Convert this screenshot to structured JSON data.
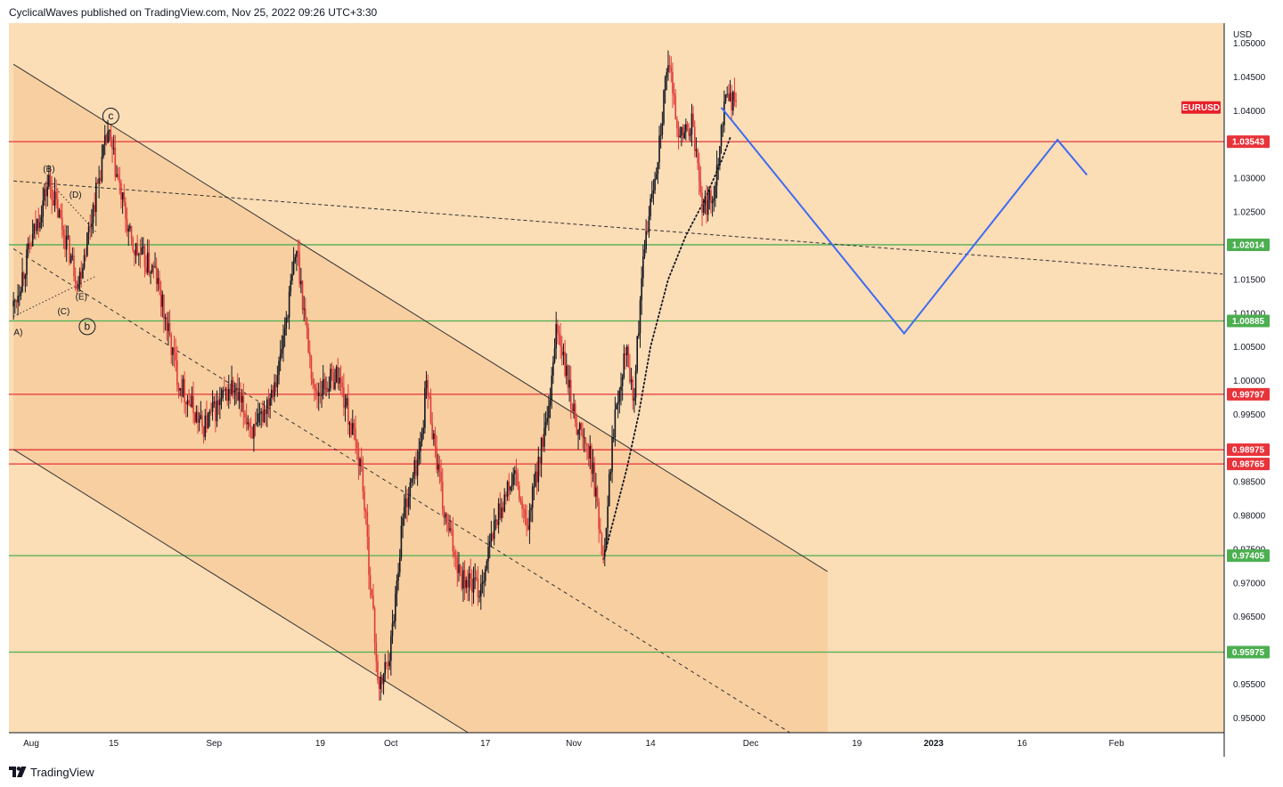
{
  "header": {
    "publisher_line": "CyclicalWaves published on TradingView.com, Nov 25, 2022 09:26 UTC+3:30"
  },
  "footer": {
    "brand": "TradingView"
  },
  "colors": {
    "background": "#FBDDB6",
    "channel_fill": "#F8CFA0",
    "up_candle": "#131722",
    "down_candle": "#E03B3B",
    "red_level": "#E8333A",
    "green_level": "#4CAF50",
    "projection": "#3D6AF2"
  },
  "chart_data": {
    "type": "candlestick",
    "symbol": "EURUSD",
    "currency": "USD",
    "ylim": [
      0.9478,
      1.053
    ],
    "x_ticks": [
      {
        "label": "Aug",
        "d": 0
      },
      {
        "label": "15",
        "d": 14
      },
      {
        "label": "Sep",
        "d": 31
      },
      {
        "label": "19",
        "d": 49
      },
      {
        "label": "Oct",
        "d": 61
      },
      {
        "label": "17",
        "d": 77
      },
      {
        "label": "Nov",
        "d": 92
      },
      {
        "label": "14",
        "d": 105
      },
      {
        "label": "Dec",
        "d": 122
      },
      {
        "label": "19",
        "d": 140
      },
      {
        "label": "2023",
        "d": 153
      },
      {
        "label": "16",
        "d": 168
      },
      {
        "label": "Feb",
        "d": 184
      }
    ],
    "y_ticks": [
      {
        "label": "1.05000",
        "v": 1.05
      },
      {
        "label": "1.04500",
        "v": 1.045
      },
      {
        "label": "1.04000",
        "v": 1.04
      },
      {
        "label": "1.03000",
        "v": 1.03
      },
      {
        "label": "1.02500",
        "v": 1.025
      },
      {
        "label": "1.01500",
        "v": 1.015
      },
      {
        "label": "1.01000",
        "v": 1.01
      },
      {
        "label": "1.00500",
        "v": 1.005
      },
      {
        "label": "1.00000",
        "v": 1.0
      },
      {
        "label": "0.99500",
        "v": 0.995
      },
      {
        "label": "0.98500",
        "v": 0.985
      },
      {
        "label": "0.98000",
        "v": 0.98
      },
      {
        "label": "0.97500",
        "v": 0.975
      },
      {
        "label": "0.97000",
        "v": 0.97
      },
      {
        "label": "0.96500",
        "v": 0.965
      },
      {
        "label": "0.95500",
        "v": 0.955
      },
      {
        "label": "0.95000",
        "v": 0.95
      }
    ],
    "horizontal_levels": [
      {
        "label": "1.03543",
        "v": 1.03543,
        "color": "red"
      },
      {
        "label": "1.02014",
        "v": 1.02014,
        "color": "green"
      },
      {
        "label": "1.00885",
        "v": 1.00885,
        "color": "green"
      },
      {
        "label": "0.99797",
        "v": 0.99797,
        "color": "red"
      },
      {
        "label": "0.98975",
        "v": 0.98975,
        "color": "red"
      },
      {
        "label": "0.98765",
        "v": 0.98765,
        "color": "red"
      },
      {
        "label": "0.97405",
        "v": 0.97405,
        "color": "green"
      },
      {
        "label": "0.95975",
        "v": 0.95975,
        "color": "green"
      }
    ],
    "wave_labels": [
      "c",
      "(B)",
      "(D)",
      "(E)",
      "(C)",
      "b",
      "A)"
    ],
    "projection_path": [
      {
        "d": 117,
        "v": 1.0405
      },
      {
        "d": 148,
        "v": 1.007
      },
      {
        "d": 174,
        "v": 1.0357
      },
      {
        "d": 179,
        "v": 1.0305
      }
    ],
    "anchors": [
      {
        "d": -3,
        "v": 1.011
      },
      {
        "d": 3,
        "v": 1.0296
      },
      {
        "d": 8,
        "v": 1.0145
      },
      {
        "d": 13,
        "v": 1.0368
      },
      {
        "d": 17,
        "v": 1.02
      },
      {
        "d": 21,
        "v": 1.016
      },
      {
        "d": 25,
        "v": 1.0
      },
      {
        "d": 29,
        "v": 0.993
      },
      {
        "d": 34,
        "v": 0.999
      },
      {
        "d": 38,
        "v": 0.992
      },
      {
        "d": 42,
        "v": 1.002
      },
      {
        "d": 45,
        "v": 1.0196
      },
      {
        "d": 48,
        "v": 0.998
      },
      {
        "d": 52,
        "v": 1.001
      },
      {
        "d": 56,
        "v": 0.987
      },
      {
        "d": 59,
        "v": 0.9536
      },
      {
        "d": 61,
        "v": 0.961
      },
      {
        "d": 63,
        "v": 0.98
      },
      {
        "d": 66,
        "v": 0.99
      },
      {
        "d": 67,
        "v": 0.9998
      },
      {
        "d": 70,
        "v": 0.98
      },
      {
        "d": 73,
        "v": 0.971
      },
      {
        "d": 76,
        "v": 0.969
      },
      {
        "d": 79,
        "v": 0.98
      },
      {
        "d": 82,
        "v": 0.986
      },
      {
        "d": 84,
        "v": 0.9775
      },
      {
        "d": 86,
        "v": 0.988
      },
      {
        "d": 88,
        "v": 0.996
      },
      {
        "d": 89,
        "v": 1.0085
      },
      {
        "d": 92,
        "v": 0.995
      },
      {
        "d": 95,
        "v": 0.988
      },
      {
        "d": 97,
        "v": 0.974
      },
      {
        "d": 99,
        "v": 0.996
      },
      {
        "d": 101,
        "v": 1.006
      },
      {
        "d": 102,
        "v": 0.996
      },
      {
        "d": 104,
        "v": 1.02
      },
      {
        "d": 106,
        "v": 1.032
      },
      {
        "d": 108,
        "v": 1.047
      },
      {
        "d": 110,
        "v": 1.036
      },
      {
        "d": 112,
        "v": 1.038
      },
      {
        "d": 114,
        "v": 1.025
      },
      {
        "d": 116,
        "v": 1.029
      },
      {
        "d": 117,
        "v": 1.038
      },
      {
        "d": 118,
        "v": 1.043
      },
      {
        "d": 119,
        "v": 1.0412
      }
    ]
  }
}
